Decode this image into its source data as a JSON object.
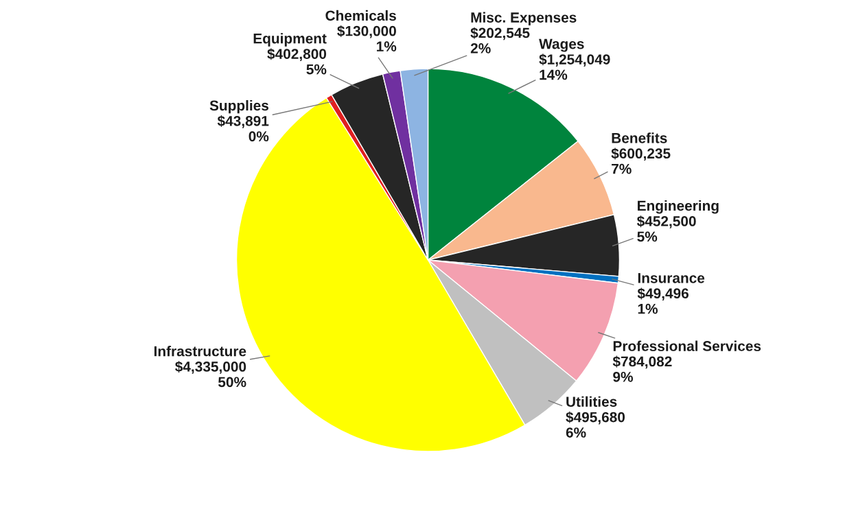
{
  "chart_data": {
    "type": "pie",
    "categories": [
      "Wages",
      "Benefits",
      "Engineering",
      "Insurance",
      "Professional Services",
      "Utilities",
      "Infrastructure",
      "Supplies",
      "Equipment",
      "Chemicals",
      "Misc. Expenses"
    ],
    "values": [
      1254049,
      600235,
      452500,
      49496,
      784082,
      495680,
      4335000,
      43891,
      402800,
      130000,
      202545
    ],
    "colors": [
      "#00843d",
      "#f9b88e",
      "#262626",
      "#0070c0",
      "#f4a0b0",
      "#c0c0c0",
      "#ffff00",
      "#e02020",
      "#262626",
      "#7030a0",
      "#8db4e2"
    ],
    "value_labels": [
      "$1,254,049\n14%",
      "$600,235\n7%",
      "$452,500\n5%",
      "$49,496\n1%",
      "$784,082\n9%",
      "$495,680\n6%",
      "$4,335,000\n50%",
      "$43,891\n0%",
      "$402,800\n5%",
      "$130,000\n1%",
      "$202,545\n2%"
    ],
    "legend": false
  }
}
